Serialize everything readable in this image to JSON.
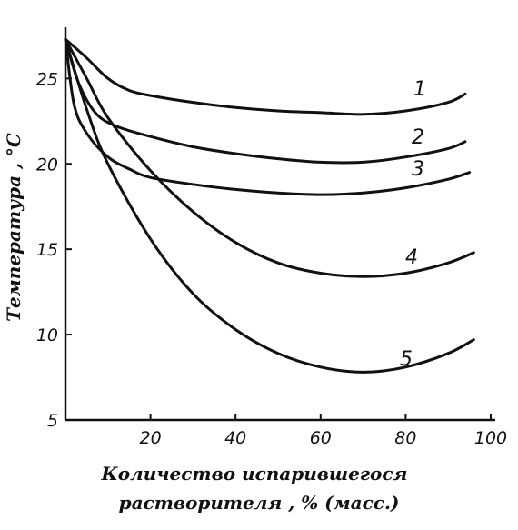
{
  "chart_data": {
    "type": "line",
    "xlabel_line1": "Количество испарившегося",
    "xlabel_line2": "растворителя , % (масс.)",
    "ylabel": "Температура , °C",
    "xlim": [
      0,
      100
    ],
    "ylim": [
      5,
      28
    ],
    "x_ticks": [
      20,
      40,
      60,
      80,
      100
    ],
    "y_ticks": [
      5,
      10,
      15,
      20,
      25
    ],
    "grid": false,
    "series": [
      {
        "name": "1",
        "points": [
          [
            0,
            27.3
          ],
          [
            5,
            26.2
          ],
          [
            10,
            25.0
          ],
          [
            15,
            24.3
          ],
          [
            20,
            24.0
          ],
          [
            30,
            23.6
          ],
          [
            40,
            23.3
          ],
          [
            50,
            23.1
          ],
          [
            60,
            23.0
          ],
          [
            70,
            22.9
          ],
          [
            80,
            23.1
          ],
          [
            90,
            23.6
          ],
          [
            94,
            24.1
          ]
        ]
      },
      {
        "name": "2",
        "points": [
          [
            0,
            27.3
          ],
          [
            3,
            24.8
          ],
          [
            7,
            23.0
          ],
          [
            12,
            22.2
          ],
          [
            20,
            21.6
          ],
          [
            30,
            21.0
          ],
          [
            40,
            20.6
          ],
          [
            50,
            20.3
          ],
          [
            60,
            20.1
          ],
          [
            70,
            20.1
          ],
          [
            80,
            20.4
          ],
          [
            90,
            20.9
          ],
          [
            94,
            21.3
          ]
        ]
      },
      {
        "name": "3",
        "points": [
          [
            0,
            27.3
          ],
          [
            2,
            23.5
          ],
          [
            5,
            21.8
          ],
          [
            10,
            20.4
          ],
          [
            15,
            19.7
          ],
          [
            20,
            19.2
          ],
          [
            30,
            18.8
          ],
          [
            40,
            18.5
          ],
          [
            50,
            18.3
          ],
          [
            60,
            18.2
          ],
          [
            70,
            18.3
          ],
          [
            80,
            18.6
          ],
          [
            90,
            19.1
          ],
          [
            95,
            19.5
          ]
        ]
      },
      {
        "name": "4",
        "points": [
          [
            0,
            27.3
          ],
          [
            5,
            25.0
          ],
          [
            10,
            22.7
          ],
          [
            20,
            19.6
          ],
          [
            30,
            17.2
          ],
          [
            40,
            15.4
          ],
          [
            50,
            14.2
          ],
          [
            60,
            13.6
          ],
          [
            70,
            13.4
          ],
          [
            80,
            13.6
          ],
          [
            90,
            14.2
          ],
          [
            96,
            14.8
          ]
        ]
      },
      {
        "name": "5",
        "points": [
          [
            0,
            27.3
          ],
          [
            5,
            23.2
          ],
          [
            10,
            20.0
          ],
          [
            20,
            15.6
          ],
          [
            30,
            12.4
          ],
          [
            40,
            10.3
          ],
          [
            50,
            8.9
          ],
          [
            60,
            8.1
          ],
          [
            70,
            7.8
          ],
          [
            80,
            8.1
          ],
          [
            90,
            8.9
          ],
          [
            96,
            9.7
          ]
        ]
      }
    ]
  }
}
